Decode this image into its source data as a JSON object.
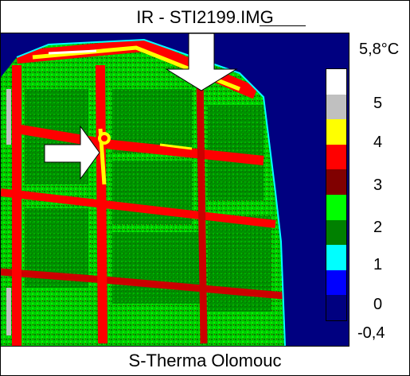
{
  "window": {
    "title": "IR - STI2199.IMG"
  },
  "footer": {
    "text": "S-Therma Olomouc"
  },
  "scale": {
    "max_label": "5,8°C",
    "min_label": "-0,4",
    "tick_labels": [
      "5",
      "4",
      "3",
      "2",
      "1",
      "0"
    ],
    "bands": [
      {
        "name": "white",
        "color": "#ffffff"
      },
      {
        "name": "light-gray",
        "color": "#c0c0c0"
      },
      {
        "name": "yellow",
        "color": "#ffff00"
      },
      {
        "name": "red",
        "color": "#ff0000"
      },
      {
        "name": "dark-red",
        "color": "#800000"
      },
      {
        "name": "green",
        "color": "#00ff00"
      },
      {
        "name": "dark-green",
        "color": "#008000"
      },
      {
        "name": "cyan",
        "color": "#00ffff"
      },
      {
        "name": "blue",
        "color": "#0000ff"
      },
      {
        "name": "navy",
        "color": "#000080"
      }
    ]
  },
  "annotations": {
    "arrows": [
      "arrow-down-icon",
      "arrow-right-icon"
    ]
  }
}
